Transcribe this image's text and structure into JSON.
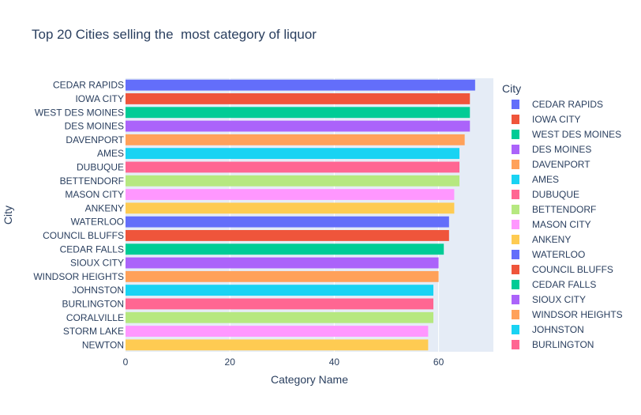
{
  "chart_data": {
    "type": "bar",
    "orientation": "horizontal",
    "title": "Top 20 Cities selling the  most category of liquor",
    "xlabel": "Category Name",
    "ylabel": "City",
    "xlim": [
      0,
      70.5
    ],
    "xticks": [
      "0",
      "20",
      "40",
      "60"
    ],
    "legend_title": "City",
    "legend_position": "right",
    "categories": [
      "CEDAR RAPIDS",
      "IOWA CITY",
      "WEST DES MOINES",
      "DES MOINES",
      "DAVENPORT",
      "AMES",
      "DUBUQUE",
      "BETTENDORF",
      "MASON CITY",
      "ANKENY",
      "WATERLOO",
      "COUNCIL BLUFFS",
      "CEDAR FALLS",
      "SIOUX CITY",
      "WINDSOR HEIGHTS",
      "JOHNSTON",
      "BURLINGTON",
      "CORALVILLE",
      "STORM LAKE",
      "NEWTON"
    ],
    "values": [
      67,
      66,
      66,
      66,
      65,
      64,
      64,
      64,
      63,
      63,
      62,
      62,
      61,
      60,
      60,
      59,
      59,
      59,
      58,
      58
    ],
    "colors": [
      "#636efa",
      "#ef553b",
      "#00cc96",
      "#ab63fa",
      "#ffa15a",
      "#19d3f3",
      "#ff6692",
      "#b6e880",
      "#ff97ff",
      "#fecb52",
      "#636efa",
      "#ef553b",
      "#00cc96",
      "#ab63fa",
      "#ffa15a",
      "#19d3f3",
      "#ff6692",
      "#b6e880",
      "#ff97ff",
      "#fecb52"
    ],
    "legend_entries": [
      "CEDAR RAPIDS",
      "IOWA CITY",
      "WEST DES MOINES",
      "DES MOINES",
      "DAVENPORT",
      "AMES",
      "DUBUQUE",
      "BETTENDORF",
      "MASON CITY",
      "ANKENY",
      "WATERLOO",
      "COUNCIL BLUFFS",
      "CEDAR FALLS",
      "SIOUX CITY",
      "WINDSOR HEIGHTS",
      "JOHNSTON",
      "BURLINGTON"
    ],
    "grid": true,
    "plot_background": "#e5ecf6"
  }
}
